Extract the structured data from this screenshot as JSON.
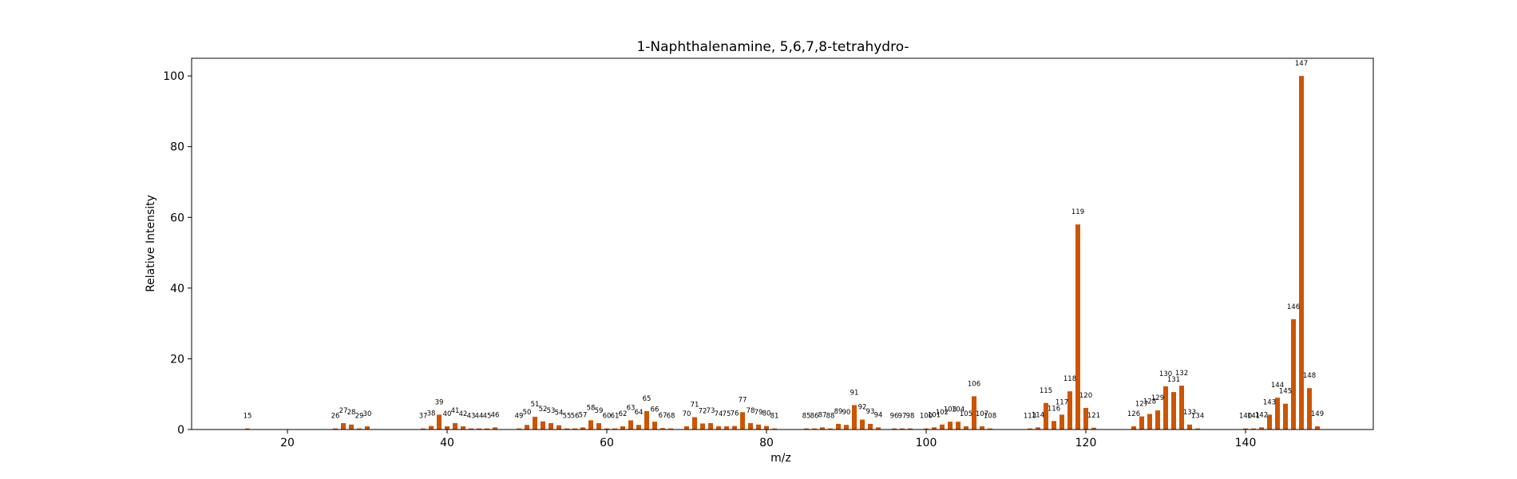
{
  "chart_data": {
    "type": "bar",
    "title": "1-Naphthalenamine, 5,6,7,8-tetrahydro-",
    "xlabel": "m/z",
    "ylabel": "Relative Intensity",
    "xlim": [
      8,
      156
    ],
    "ylim": [
      0,
      105
    ],
    "xticks": [
      20,
      40,
      60,
      80,
      100,
      120,
      140
    ],
    "yticks": [
      0,
      20,
      40,
      60,
      80,
      100
    ],
    "grid": false,
    "bar_color": "#cc5500",
    "peaks": [
      {
        "mz": 15,
        "intensity": 0.3
      },
      {
        "mz": 26,
        "intensity": 0.3
      },
      {
        "mz": 27,
        "intensity": 1.8
      },
      {
        "mz": 28,
        "intensity": 1.4
      },
      {
        "mz": 29,
        "intensity": 0.3
      },
      {
        "mz": 30,
        "intensity": 0.9
      },
      {
        "mz": 37,
        "intensity": 0.3
      },
      {
        "mz": 38,
        "intensity": 1.0
      },
      {
        "mz": 39,
        "intensity": 4.2
      },
      {
        "mz": 40,
        "intensity": 0.9
      },
      {
        "mz": 41,
        "intensity": 1.8
      },
      {
        "mz": 42,
        "intensity": 0.9
      },
      {
        "mz": 43,
        "intensity": 0.3
      },
      {
        "mz": 44,
        "intensity": 0.3
      },
      {
        "mz": 45,
        "intensity": 0.3
      },
      {
        "mz": 46,
        "intensity": 0.6
      },
      {
        "mz": 49,
        "intensity": 0.3
      },
      {
        "mz": 50,
        "intensity": 1.3
      },
      {
        "mz": 51,
        "intensity": 3.6
      },
      {
        "mz": 52,
        "intensity": 2.3
      },
      {
        "mz": 53,
        "intensity": 1.8
      },
      {
        "mz": 54,
        "intensity": 1.2
      },
      {
        "mz": 55,
        "intensity": 0.3
      },
      {
        "mz": 56,
        "intensity": 0.3
      },
      {
        "mz": 57,
        "intensity": 0.6
      },
      {
        "mz": 58,
        "intensity": 2.6
      },
      {
        "mz": 59,
        "intensity": 1.8
      },
      {
        "mz": 60,
        "intensity": 0.3
      },
      {
        "mz": 61,
        "intensity": 0.3
      },
      {
        "mz": 62,
        "intensity": 0.9
      },
      {
        "mz": 63,
        "intensity": 2.6
      },
      {
        "mz": 64,
        "intensity": 1.3
      },
      {
        "mz": 65,
        "intensity": 5.2
      },
      {
        "mz": 66,
        "intensity": 2.2
      },
      {
        "mz": 67,
        "intensity": 0.4
      },
      {
        "mz": 68,
        "intensity": 0.3
      },
      {
        "mz": 70,
        "intensity": 0.9
      },
      {
        "mz": 71,
        "intensity": 3.5
      },
      {
        "mz": 72,
        "intensity": 1.7
      },
      {
        "mz": 73,
        "intensity": 1.8
      },
      {
        "mz": 74,
        "intensity": 0.9
      },
      {
        "mz": 75,
        "intensity": 0.9
      },
      {
        "mz": 76,
        "intensity": 1.0
      },
      {
        "mz": 77,
        "intensity": 4.9
      },
      {
        "mz": 78,
        "intensity": 1.8
      },
      {
        "mz": 79,
        "intensity": 1.4
      },
      {
        "mz": 80,
        "intensity": 1.0
      },
      {
        "mz": 81,
        "intensity": 0.3
      },
      {
        "mz": 85,
        "intensity": 0.3
      },
      {
        "mz": 86,
        "intensity": 0.3
      },
      {
        "mz": 87,
        "intensity": 0.6
      },
      {
        "mz": 88,
        "intensity": 0.3
      },
      {
        "mz": 89,
        "intensity": 1.6
      },
      {
        "mz": 90,
        "intensity": 1.3
      },
      {
        "mz": 91,
        "intensity": 6.9
      },
      {
        "mz": 92,
        "intensity": 2.8
      },
      {
        "mz": 93,
        "intensity": 1.6
      },
      {
        "mz": 94,
        "intensity": 0.6
      },
      {
        "mz": 96,
        "intensity": 0.3
      },
      {
        "mz": 97,
        "intensity": 0.3
      },
      {
        "mz": 98,
        "intensity": 0.3
      },
      {
        "mz": 100,
        "intensity": 0.3
      },
      {
        "mz": 101,
        "intensity": 0.6
      },
      {
        "mz": 102,
        "intensity": 1.4
      },
      {
        "mz": 103,
        "intensity": 2.2
      },
      {
        "mz": 104,
        "intensity": 2.2
      },
      {
        "mz": 105,
        "intensity": 0.9
      },
      {
        "mz": 106,
        "intensity": 9.4
      },
      {
        "mz": 107,
        "intensity": 0.9
      },
      {
        "mz": 108,
        "intensity": 0.3
      },
      {
        "mz": 113,
        "intensity": 0.3
      },
      {
        "mz": 114,
        "intensity": 0.6
      },
      {
        "mz": 115,
        "intensity": 7.5
      },
      {
        "mz": 116,
        "intensity": 2.4
      },
      {
        "mz": 117,
        "intensity": 4.2
      },
      {
        "mz": 118,
        "intensity": 10.8
      },
      {
        "mz": 119,
        "intensity": 58.0
      },
      {
        "mz": 120,
        "intensity": 6.1
      },
      {
        "mz": 121,
        "intensity": 0.5
      },
      {
        "mz": 126,
        "intensity": 0.9
      },
      {
        "mz": 127,
        "intensity": 3.7
      },
      {
        "mz": 128,
        "intensity": 4.4
      },
      {
        "mz": 129,
        "intensity": 5.4
      },
      {
        "mz": 130,
        "intensity": 12.2
      },
      {
        "mz": 131,
        "intensity": 10.6
      },
      {
        "mz": 132,
        "intensity": 12.4
      },
      {
        "mz": 133,
        "intensity": 1.4
      },
      {
        "mz": 134,
        "intensity": 0.3
      },
      {
        "mz": 140,
        "intensity": 0.3
      },
      {
        "mz": 141,
        "intensity": 0.3
      },
      {
        "mz": 142,
        "intensity": 0.6
      },
      {
        "mz": 143,
        "intensity": 4.2
      },
      {
        "mz": 144,
        "intensity": 9.0
      },
      {
        "mz": 145,
        "intensity": 7.3
      },
      {
        "mz": 146,
        "intensity": 31.2
      },
      {
        "mz": 147,
        "intensity": 100.0
      },
      {
        "mz": 148,
        "intensity": 11.7
      },
      {
        "mz": 149,
        "intensity": 0.9
      }
    ]
  }
}
